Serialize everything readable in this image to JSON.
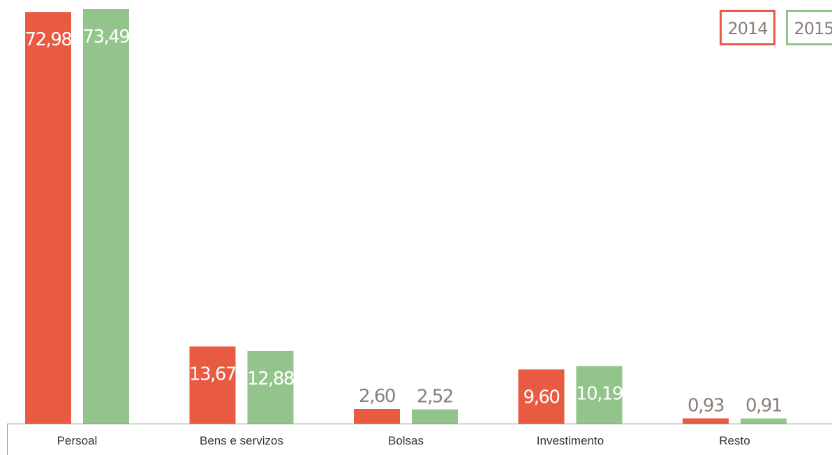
{
  "chart_data": {
    "type": "bar",
    "title": "",
    "xlabel": "",
    "ylabel": "",
    "categories": [
      "Persoal",
      "Bens e servizos",
      "Bolsas",
      "Investimento",
      "Resto"
    ],
    "series": [
      {
        "name": "2014",
        "color": "#e85a42",
        "values": [
          72.98,
          13.67,
          2.6,
          9.6,
          0.93
        ],
        "labels": [
          "72,98",
          "13,67",
          "2,60",
          "9,60",
          "0,93"
        ]
      },
      {
        "name": "2015",
        "color": "#93c48b",
        "values": [
          73.49,
          12.88,
          2.52,
          10.19,
          0.91
        ],
        "labels": [
          "73,49",
          "12,88",
          "2,52",
          "10,19",
          "0,91"
        ]
      }
    ],
    "ylim": [
      0,
      73.49
    ],
    "grid": false,
    "legend_position": "top-right",
    "label_color_inside": "#ffffff",
    "label_color_outside": "#8a7f78",
    "axis_color": "#999999"
  }
}
